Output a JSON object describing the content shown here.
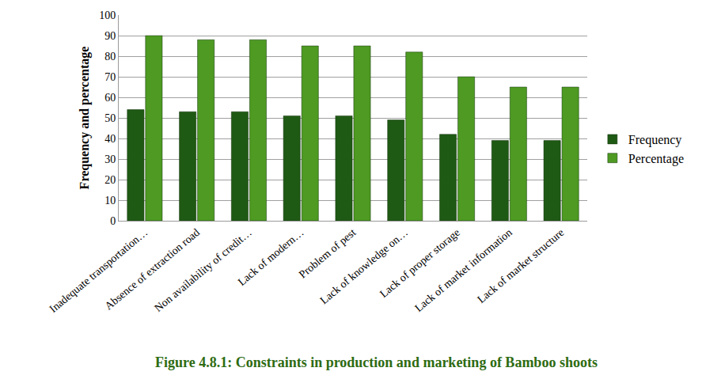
{
  "chart_data": {
    "type": "bar",
    "title": "Figure 4.8.1: Constraints in production and marketing of Bamboo shoots",
    "y_label": "Frequency and percentage",
    "categories": [
      "Inadequate transportation…",
      "Absence of extraction road",
      "Non availability of credit…",
      "Lack of modern…",
      "Problem of pest",
      "Lack of knowledge on…",
      "Lack of proper storage",
      "Lack of market information",
      "Lack of market structure"
    ],
    "series": [
      {
        "name": "Frequency",
        "color": "#1f5a14",
        "values": [
          54,
          53,
          53,
          51,
          51,
          49,
          42,
          39,
          39
        ]
      },
      {
        "name": "Percentage",
        "color": "#4e9a22",
        "values": [
          90,
          88,
          88,
          85,
          85,
          82,
          70,
          65,
          65
        ]
      }
    ],
    "ylim": [
      0,
      100
    ],
    "yticks": [
      0,
      10,
      20,
      30,
      40,
      50,
      60,
      70,
      80,
      90,
      100
    ],
    "grid": true,
    "legend": "right"
  }
}
